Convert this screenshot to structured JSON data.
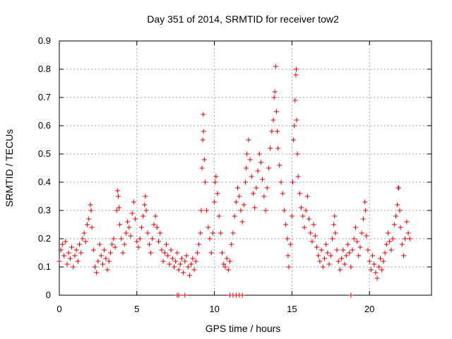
{
  "chart_data": {
    "type": "scatter",
    "title": "Day 351 of 2014, SRMTID for receiver tow2",
    "xlabel": "GPS time / hours",
    "ylabel": "SRMTID / TECUs",
    "xlim": [
      0,
      24
    ],
    "ylim": [
      0,
      0.9
    ],
    "xticks": [
      "0",
      "5",
      "10",
      "15",
      "20"
    ],
    "yticks": [
      "0",
      "0.1",
      "0.2",
      "0.3",
      "0.4",
      "0.5",
      "0.6",
      "0.7",
      "0.8",
      "0.9"
    ],
    "grid": true,
    "marker": "+",
    "series": [
      {
        "name": "tow2",
        "color": "#e00000",
        "points": [
          [
            0.0,
            0.12
          ],
          [
            0.1,
            0.16
          ],
          [
            0.2,
            0.18
          ],
          [
            0.3,
            0.14
          ],
          [
            0.4,
            0.19
          ],
          [
            0.5,
            0.11
          ],
          [
            0.6,
            0.15
          ],
          [
            0.7,
            0.13
          ],
          [
            0.8,
            0.17
          ],
          [
            0.9,
            0.1
          ],
          [
            1.0,
            0.14
          ],
          [
            1.1,
            0.16
          ],
          [
            1.2,
            0.12
          ],
          [
            1.3,
            0.18
          ],
          [
            1.4,
            0.15
          ],
          [
            1.5,
            0.2
          ],
          [
            1.6,
            0.22
          ],
          [
            1.7,
            0.19
          ],
          [
            1.8,
            0.25
          ],
          [
            1.9,
            0.27
          ],
          [
            2.0,
            0.32
          ],
          [
            2.05,
            0.3
          ],
          [
            2.1,
            0.24
          ],
          [
            2.2,
            0.16
          ],
          [
            2.3,
            0.1
          ],
          [
            2.4,
            0.08
          ],
          [
            2.5,
            0.12
          ],
          [
            2.6,
            0.18
          ],
          [
            2.7,
            0.14
          ],
          [
            2.8,
            0.11
          ],
          [
            2.9,
            0.16
          ],
          [
            3.0,
            0.13
          ],
          [
            3.1,
            0.09
          ],
          [
            3.2,
            0.12
          ],
          [
            3.3,
            0.15
          ],
          [
            3.4,
            0.18
          ],
          [
            3.5,
            0.2
          ],
          [
            3.6,
            0.17
          ],
          [
            3.7,
            0.3
          ],
          [
            3.75,
            0.37
          ],
          [
            3.8,
            0.35
          ],
          [
            3.85,
            0.31
          ],
          [
            3.9,
            0.25
          ],
          [
            4.0,
            0.2
          ],
          [
            4.1,
            0.15
          ],
          [
            4.2,
            0.18
          ],
          [
            4.3,
            0.22
          ],
          [
            4.4,
            0.26
          ],
          [
            4.5,
            0.24
          ],
          [
            4.6,
            0.21
          ],
          [
            4.7,
            0.29
          ],
          [
            4.8,
            0.33
          ],
          [
            4.9,
            0.27
          ],
          [
            5.0,
            0.19
          ],
          [
            5.1,
            0.17
          ],
          [
            5.2,
            0.2
          ],
          [
            5.3,
            0.24
          ],
          [
            5.4,
            0.28
          ],
          [
            5.5,
            0.32
          ],
          [
            5.55,
            0.35
          ],
          [
            5.6,
            0.3
          ],
          [
            5.7,
            0.22
          ],
          [
            5.8,
            0.18
          ],
          [
            5.9,
            0.15
          ],
          [
            6.0,
            0.2
          ],
          [
            6.1,
            0.25
          ],
          [
            6.2,
            0.28
          ],
          [
            6.3,
            0.24
          ],
          [
            6.4,
            0.19
          ],
          [
            6.5,
            0.22
          ],
          [
            6.6,
            0.16
          ],
          [
            6.7,
            0.12
          ],
          [
            6.8,
            0.15
          ],
          [
            6.9,
            0.18
          ],
          [
            7.0,
            0.14
          ],
          [
            7.1,
            0.11
          ],
          [
            7.2,
            0.16
          ],
          [
            7.3,
            0.13
          ],
          [
            7.4,
            0.1
          ],
          [
            7.5,
            0.12
          ],
          [
            7.6,
            0.15
          ],
          [
            7.7,
            0.09
          ],
          [
            7.8,
            0.11
          ],
          [
            7.9,
            0.13
          ],
          [
            8.0,
            0.08
          ],
          [
            8.1,
            0.12
          ],
          [
            8.2,
            0.14
          ],
          [
            8.3,
            0.1
          ],
          [
            8.4,
            0.07
          ],
          [
            8.5,
            0.11
          ],
          [
            8.6,
            0.13
          ],
          [
            8.7,
            0.09
          ],
          [
            8.8,
            0.12
          ],
          [
            8.9,
            0.15
          ],
          [
            9.0,
            0.18
          ],
          [
            9.1,
            0.22
          ],
          [
            9.15,
            0.3
          ],
          [
            9.2,
            0.45
          ],
          [
            9.25,
            0.55
          ],
          [
            9.28,
            0.64
          ],
          [
            9.3,
            0.58
          ],
          [
            9.35,
            0.48
          ],
          [
            9.4,
            0.4
          ],
          [
            9.5,
            0.3
          ],
          [
            9.6,
            0.24
          ],
          [
            9.7,
            0.2
          ],
          [
            9.8,
            0.15
          ],
          [
            9.9,
            0.22
          ],
          [
            10.0,
            0.33
          ],
          [
            10.05,
            0.4
          ],
          [
            10.1,
            0.42
          ],
          [
            10.2,
            0.36
          ],
          [
            10.3,
            0.28
          ],
          [
            10.4,
            0.22
          ],
          [
            10.5,
            0.15
          ],
          [
            10.6,
            0.11
          ],
          [
            10.7,
            0.1
          ],
          [
            10.8,
            0.13
          ],
          [
            10.9,
            0.09
          ],
          [
            11.0,
            0.12
          ],
          [
            11.1,
            0.18
          ],
          [
            11.2,
            0.22
          ],
          [
            11.3,
            0.28
          ],
          [
            11.4,
            0.33
          ],
          [
            11.5,
            0.38
          ],
          [
            11.6,
            0.35
          ],
          [
            11.7,
            0.3
          ],
          [
            11.8,
            0.26
          ],
          [
            11.9,
            0.32
          ],
          [
            12.0,
            0.4
          ],
          [
            12.05,
            0.45
          ],
          [
            12.1,
            0.5
          ],
          [
            12.2,
            0.55
          ],
          [
            12.3,
            0.48
          ],
          [
            12.4,
            0.42
          ],
          [
            12.5,
            0.36
          ],
          [
            12.6,
            0.31
          ],
          [
            12.7,
            0.38
          ],
          [
            12.8,
            0.44
          ],
          [
            12.9,
            0.5
          ],
          [
            13.0,
            0.47
          ],
          [
            13.1,
            0.41
          ],
          [
            13.2,
            0.35
          ],
          [
            13.3,
            0.3
          ],
          [
            13.4,
            0.38
          ],
          [
            13.5,
            0.45
          ],
          [
            13.6,
            0.52
          ],
          [
            13.7,
            0.58
          ],
          [
            13.8,
            0.62
          ],
          [
            13.85,
            0.7
          ],
          [
            13.9,
            0.72
          ],
          [
            13.95,
            0.81
          ],
          [
            14.0,
            0.65
          ],
          [
            14.05,
            0.58
          ],
          [
            14.1,
            0.52
          ],
          [
            14.2,
            0.46
          ],
          [
            14.3,
            0.4
          ],
          [
            14.4,
            0.36
          ],
          [
            14.5,
            0.3
          ],
          [
            14.6,
            0.25
          ],
          [
            14.7,
            0.2
          ],
          [
            14.75,
            0.14
          ],
          [
            14.8,
            0.1
          ],
          [
            14.9,
            0.18
          ],
          [
            15.0,
            0.28
          ],
          [
            15.05,
            0.4
          ],
          [
            15.1,
            0.55
          ],
          [
            15.15,
            0.6
          ],
          [
            15.2,
            0.69
          ],
          [
            15.25,
            0.78
          ],
          [
            15.28,
            0.8
          ],
          [
            15.3,
            0.62
          ],
          [
            15.35,
            0.5
          ],
          [
            15.4,
            0.42
          ],
          [
            15.5,
            0.36
          ],
          [
            15.6,
            0.31
          ],
          [
            15.7,
            0.28
          ],
          [
            15.8,
            0.24
          ],
          [
            15.9,
            0.3
          ],
          [
            16.0,
            0.35
          ],
          [
            16.1,
            0.27
          ],
          [
            16.2,
            0.22
          ],
          [
            16.3,
            0.19
          ],
          [
            16.4,
            0.25
          ],
          [
            16.5,
            0.21
          ],
          [
            16.6,
            0.17
          ],
          [
            16.7,
            0.14
          ],
          [
            16.8,
            0.12
          ],
          [
            16.9,
            0.16
          ],
          [
            17.0,
            0.1
          ],
          [
            17.1,
            0.13
          ],
          [
            17.2,
            0.18
          ],
          [
            17.3,
            0.15
          ],
          [
            17.4,
            0.11
          ],
          [
            17.5,
            0.14
          ],
          [
            17.6,
            0.2
          ],
          [
            17.7,
            0.25
          ],
          [
            17.75,
            0.28
          ],
          [
            17.8,
            0.22
          ],
          [
            17.9,
            0.16
          ],
          [
            18.0,
            0.12
          ],
          [
            18.1,
            0.09
          ],
          [
            18.2,
            0.13
          ],
          [
            18.3,
            0.16
          ],
          [
            18.4,
            0.11
          ],
          [
            18.5,
            0.14
          ],
          [
            18.6,
            0.18
          ],
          [
            18.7,
            0.15
          ],
          [
            18.8,
            0.1
          ],
          [
            18.9,
            0.16
          ],
          [
            19.0,
            0.2
          ],
          [
            19.1,
            0.24
          ],
          [
            19.2,
            0.19
          ],
          [
            19.3,
            0.14
          ],
          [
            19.4,
            0.17
          ],
          [
            19.5,
            0.22
          ],
          [
            19.6,
            0.27
          ],
          [
            19.7,
            0.33
          ],
          [
            19.75,
            0.3
          ],
          [
            19.8,
            0.21
          ],
          [
            19.9,
            0.16
          ],
          [
            20.0,
            0.12
          ],
          [
            20.1,
            0.09
          ],
          [
            20.2,
            0.14
          ],
          [
            20.3,
            0.11
          ],
          [
            20.4,
            0.08
          ],
          [
            20.5,
            0.06
          ],
          [
            20.6,
            0.1
          ],
          [
            20.7,
            0.13
          ],
          [
            20.8,
            0.09
          ],
          [
            20.9,
            0.12
          ],
          [
            21.0,
            0.15
          ],
          [
            21.1,
            0.18
          ],
          [
            21.2,
            0.22
          ],
          [
            21.3,
            0.19
          ],
          [
            21.4,
            0.16
          ],
          [
            21.5,
            0.2
          ],
          [
            21.6,
            0.25
          ],
          [
            21.7,
            0.28
          ],
          [
            21.8,
            0.32
          ],
          [
            21.85,
            0.38
          ],
          [
            21.9,
            0.38
          ],
          [
            21.95,
            0.3
          ],
          [
            22.0,
            0.24
          ],
          [
            22.1,
            0.18
          ],
          [
            22.2,
            0.14
          ],
          [
            22.3,
            0.2
          ],
          [
            22.4,
            0.26
          ],
          [
            22.5,
            0.22
          ],
          [
            22.6,
            0.2
          ],
          [
            7.6,
            0.0
          ],
          [
            7.7,
            0.0
          ],
          [
            8.1,
            0.0
          ],
          [
            11.0,
            0.0
          ],
          [
            11.2,
            0.0
          ],
          [
            11.4,
            0.0
          ],
          [
            11.6,
            0.0
          ],
          [
            11.8,
            0.0
          ],
          [
            18.8,
            0.0
          ]
        ]
      }
    ]
  }
}
